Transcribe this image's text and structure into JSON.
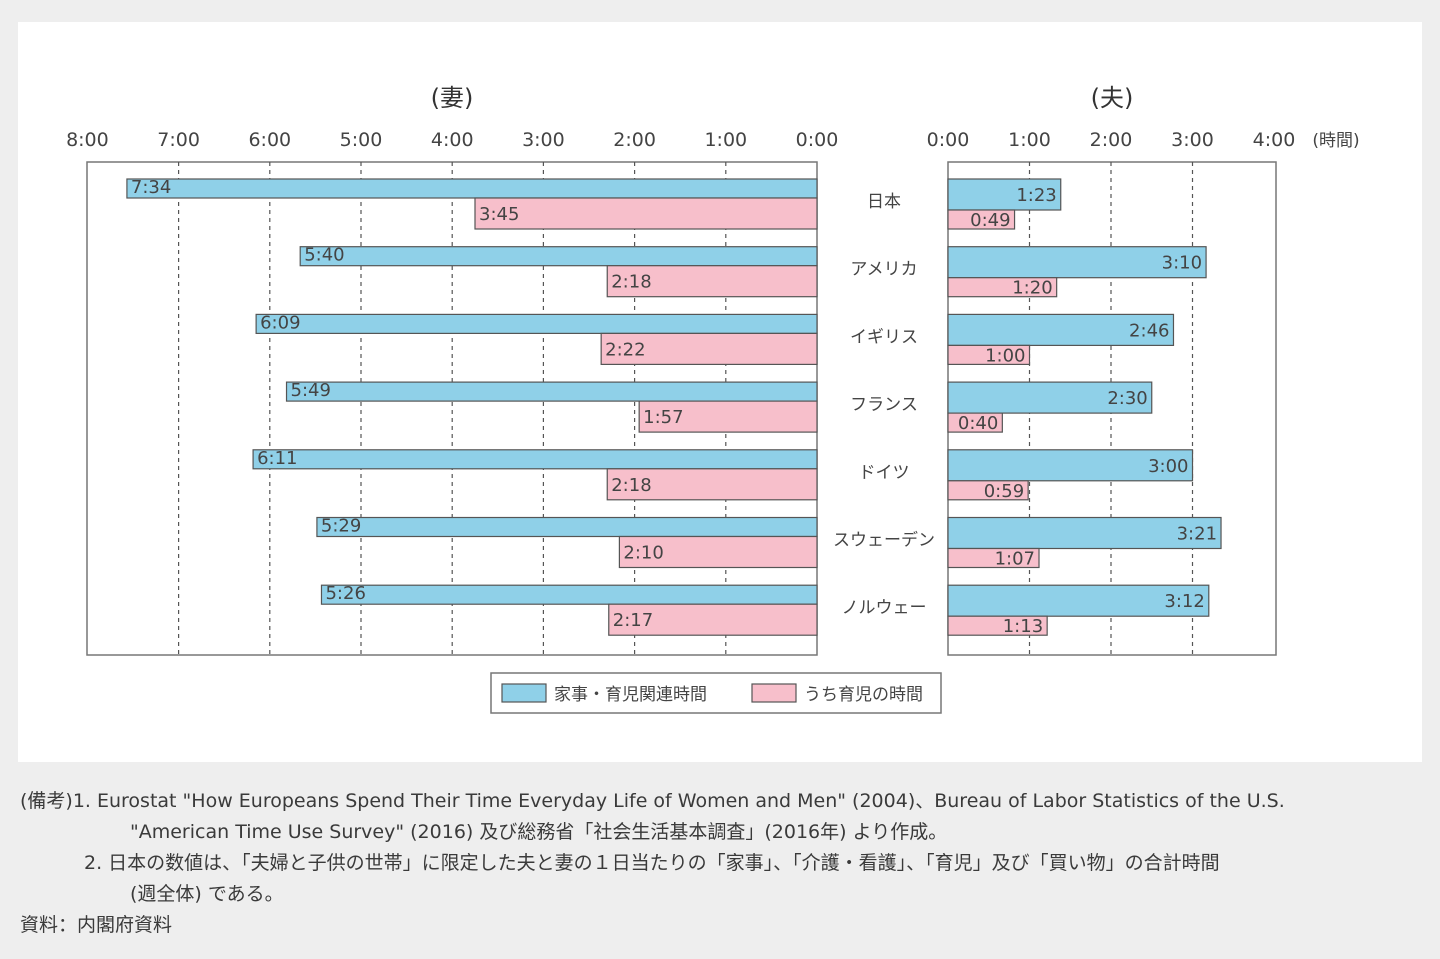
{
  "chart_data": {
    "type": "bar",
    "orientation": "horizontal",
    "unit": "(時間)",
    "panels": [
      {
        "title": "(妻)",
        "direction": "right-to-left",
        "xlim": [
          0,
          480
        ],
        "ticks": [
          "0:00",
          "1:00",
          "2:00",
          "3:00",
          "4:00",
          "5:00",
          "6:00",
          "7:00",
          "8:00"
        ]
      },
      {
        "title": "(夫)",
        "direction": "left-to-right",
        "xlim": [
          0,
          240
        ],
        "ticks": [
          "0:00",
          "1:00",
          "2:00",
          "3:00",
          "4:00"
        ]
      }
    ],
    "categories": [
      "日本",
      "アメリカ",
      "イギリス",
      "フランス",
      "ドイツ",
      "スウェーデン",
      "ノルウェー"
    ],
    "series": [
      {
        "name": "家事・育児関連時間",
        "color": "#8fd0e8",
        "wife": [
          454,
          340,
          369,
          349,
          371,
          329,
          326
        ],
        "wife_labels": [
          "7:34",
          "5:40",
          "6:09",
          "5:49",
          "6:11",
          "5:29",
          "5:26"
        ],
        "husband": [
          83,
          190,
          166,
          150,
          180,
          201,
          192
        ],
        "husband_labels": [
          "1:23",
          "3:10",
          "2:46",
          "2:30",
          "3:00",
          "3:21",
          "3:12"
        ]
      },
      {
        "name": "うち育児の時間",
        "color": "#f7bfcb",
        "wife": [
          225,
          138,
          142,
          117,
          138,
          130,
          137
        ],
        "wife_labels": [
          "3:45",
          "2:18",
          "2:22",
          "1:57",
          "2:18",
          "2:10",
          "2:17"
        ],
        "husband": [
          49,
          80,
          60,
          40,
          59,
          67,
          73
        ],
        "husband_labels": [
          "0:49",
          "1:20",
          "1:00",
          "0:40",
          "0:59",
          "1:07",
          "1:13"
        ]
      }
    ],
    "legend_position": "bottom-center",
    "grid": true
  },
  "notes": {
    "line1": "(備考)1.  Eurostat \"How Europeans Spend Their Time Everyday Life of Women and Men\" (2004)、Bureau of Labor Statistics of the U.S.",
    "line2": "\"American Time Use Survey\" (2016) 及び総務省「社会生活基本調査」(2016年) より作成。",
    "line3": "2.  日本の数値は、「夫婦と子供の世帯」に限定した夫と妻の１日当たりの「家事」、「介護・看護」、「育児」及び「買い物」の合計時間",
    "line4": "(週全体) である。",
    "line5": "資料：内閣府資料"
  }
}
